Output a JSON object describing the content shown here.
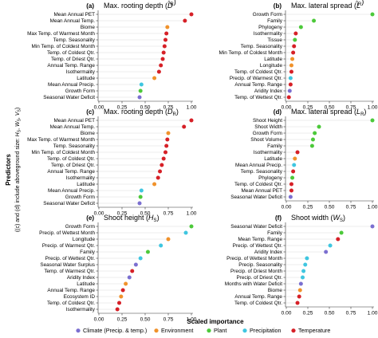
{
  "colors": {
    "Climate (Precip. & temp.)": "#7b6fd0",
    "Environment": "#f0922b",
    "Plant": "#4cc93a",
    "Precipitation": "#3fc6e0",
    "Temperature": "#d62027"
  },
  "y_axis_title": "Predictors",
  "y_axis_subtitle": "((c) and (d) include aboveground size: H_S, W_S, V_S)",
  "x_axis_title": "Scaled importance",
  "legend": [
    "Climate (Precip. & temp.)",
    "Environment",
    "Plant",
    "Precipitation",
    "Temperature"
  ],
  "chart_data": [
    {
      "panel": "(a)",
      "type": "scatter",
      "title": "Max. rooting depth",
      "symbol": "D",
      "symbol_sub": "R",
      "symbol_hat": true,
      "xlim": [
        0,
        1
      ],
      "xticks": [
        "0.00",
        "0.25",
        "0.50",
        "0.75",
        "1.00"
      ],
      "items": [
        {
          "label": "Mean Annual PET",
          "value": 1.0,
          "group": "Temperature"
        },
        {
          "label": "Mean Annual Temp.",
          "value": 0.93,
          "group": "Temperature"
        },
        {
          "label": "Biome",
          "value": 0.74,
          "group": "Environment"
        },
        {
          "label": "Max Temp. of Warmest Month",
          "value": 0.73,
          "group": "Temperature"
        },
        {
          "label": "Temp. Seasonality",
          "value": 0.72,
          "group": "Temperature"
        },
        {
          "label": "Min Temp. of Coldest Month",
          "value": 0.71,
          "group": "Temperature"
        },
        {
          "label": "Temp. of Coldest Qtr.",
          "value": 0.7,
          "group": "Temperature"
        },
        {
          "label": "Temp. of Driest Qtr.",
          "value": 0.69,
          "group": "Temperature"
        },
        {
          "label": "Annual Temp. Range",
          "value": 0.67,
          "group": "Temperature"
        },
        {
          "label": "Isothermality",
          "value": 0.65,
          "group": "Temperature"
        },
        {
          "label": "Latitude",
          "value": 0.6,
          "group": "Environment"
        },
        {
          "label": "Mean Annual Precip.",
          "value": 0.46,
          "group": "Precipitation"
        },
        {
          "label": "Growth Form",
          "value": 0.45,
          "group": "Plant"
        },
        {
          "label": "Seasonal Water Deficit",
          "value": 0.44,
          "group": "Climate (Precip. & temp.)"
        }
      ]
    },
    {
      "panel": "(b)",
      "type": "scatter",
      "title": "Max. lateral spread",
      "symbol": "L",
      "symbol_sub": "R",
      "symbol_hat": true,
      "xlim": [
        0,
        1
      ],
      "xticks": [
        "0.00",
        "0.25",
        "0.50",
        "0.75",
        "1.00"
      ],
      "items": [
        {
          "label": "Growth Form",
          "value": 1.0,
          "group": "Plant"
        },
        {
          "label": "Family",
          "value": 0.32,
          "group": "Plant"
        },
        {
          "label": "Phylogeny",
          "value": 0.17,
          "group": "Plant"
        },
        {
          "label": "Isothermality",
          "value": 0.11,
          "group": "Temperature"
        },
        {
          "label": "Tissue",
          "value": 0.1,
          "group": "Plant"
        },
        {
          "label": "Temp. Seasonality",
          "value": 0.09,
          "group": "Temperature"
        },
        {
          "label": "Min Temp. of Coldest Month",
          "value": 0.08,
          "group": "Temperature"
        },
        {
          "label": "Latitude",
          "value": 0.07,
          "group": "Environment"
        },
        {
          "label": "Longitude",
          "value": 0.06,
          "group": "Environment"
        },
        {
          "label": "Temp. of Coldest Qtr.",
          "value": 0.06,
          "group": "Temperature"
        },
        {
          "label": "Precip. of Warmest Qtr.",
          "value": 0.05,
          "group": "Precipitation"
        },
        {
          "label": "Annual Temp. Range",
          "value": 0.05,
          "group": "Temperature"
        },
        {
          "label": "Aridity Index",
          "value": 0.04,
          "group": "Climate (Precip. & temp.)"
        },
        {
          "label": "Temp. of Wettest Qtr.",
          "value": 0.03,
          "group": "Temperature"
        }
      ]
    },
    {
      "panel": "(c)",
      "type": "scatter",
      "title": "Max. rooting depth",
      "symbol": "D",
      "symbol_sub": "R",
      "symbol_hat": false,
      "xlim": [
        0,
        1
      ],
      "xticks": [
        "0.00",
        "0.25",
        "0.50",
        "0.75",
        "1.00"
      ],
      "items": [
        {
          "label": "Mean Annual PET",
          "value": 1.0,
          "group": "Temperature"
        },
        {
          "label": "Mean Annual Temp.",
          "value": 0.92,
          "group": "Temperature"
        },
        {
          "label": "Biome",
          "value": 0.75,
          "group": "Environment"
        },
        {
          "label": "Max Temp. of Warmest Month",
          "value": 0.74,
          "group": "Temperature"
        },
        {
          "label": "Temp. Seasonality",
          "value": 0.73,
          "group": "Temperature"
        },
        {
          "label": "Min Temp. of Coldest Month",
          "value": 0.72,
          "group": "Temperature"
        },
        {
          "label": "Temp. of Coldest Qtr.",
          "value": 0.7,
          "group": "Temperature"
        },
        {
          "label": "Temp. of Driest Qtr.",
          "value": 0.68,
          "group": "Temperature"
        },
        {
          "label": "Annual Temp. Range",
          "value": 0.66,
          "group": "Temperature"
        },
        {
          "label": "Isothermality",
          "value": 0.64,
          "group": "Temperature"
        },
        {
          "label": "Latitude",
          "value": 0.6,
          "group": "Environment"
        },
        {
          "label": "Mean Annual Precip.",
          "value": 0.46,
          "group": "Precipitation"
        },
        {
          "label": "Growth Form",
          "value": 0.45,
          "group": "Plant"
        },
        {
          "label": "Seasonal Water Deficit",
          "value": 0.44,
          "group": "Climate (Precip. & temp.)"
        }
      ]
    },
    {
      "panel": "(d)",
      "type": "scatter",
      "title": "Max. lateral spread",
      "symbol": "L",
      "symbol_sub": "R",
      "symbol_hat": false,
      "xlim": [
        0,
        1
      ],
      "xticks": [
        "0.00",
        "0.25",
        "0.50",
        "0.75",
        "1.00"
      ],
      "items": [
        {
          "label": "Shoot Height",
          "value": 1.0,
          "group": "Plant"
        },
        {
          "label": "Shoot Width",
          "value": 0.38,
          "group": "Plant"
        },
        {
          "label": "Growth Form",
          "value": 0.33,
          "group": "Plant"
        },
        {
          "label": "Shoot Volume",
          "value": 0.31,
          "group": "Plant"
        },
        {
          "label": "Family",
          "value": 0.3,
          "group": "Plant"
        },
        {
          "label": "Isothermality",
          "value": 0.13,
          "group": "Temperature"
        },
        {
          "label": "Latitude",
          "value": 0.1,
          "group": "Environment"
        },
        {
          "label": "Mean Annual Precip.",
          "value": 0.09,
          "group": "Precipitation"
        },
        {
          "label": "Temp. Seasonality",
          "value": 0.08,
          "group": "Temperature"
        },
        {
          "label": "Phylogeny",
          "value": 0.07,
          "group": "Plant"
        },
        {
          "label": "Temp. of Coldest Qtr.",
          "value": 0.06,
          "group": "Temperature"
        },
        {
          "label": "Mean Annual PET",
          "value": 0.06,
          "group": "Temperature"
        },
        {
          "label": "Seasonal Water Deficit",
          "value": 0.05,
          "group": "Climate (Precip. & temp.)"
        }
      ]
    },
    {
      "panel": "(e)",
      "type": "scatter",
      "title": "Shoot height",
      "symbol": "H",
      "symbol_sub": "S",
      "symbol_hat": false,
      "xlim": [
        0,
        1
      ],
      "xticks": [
        "0.00",
        "0.25",
        "0.50",
        "0.75",
        "1.00"
      ],
      "items": [
        {
          "label": "Growth Form",
          "value": 1.0,
          "group": "Plant"
        },
        {
          "label": "Precip. of Wettest Month",
          "value": 0.94,
          "group": "Precipitation"
        },
        {
          "label": "Longitude",
          "value": 0.75,
          "group": "Environment"
        },
        {
          "label": "Precip. of Warmest Qtr.",
          "value": 0.67,
          "group": "Precipitation"
        },
        {
          "label": "Family",
          "value": 0.53,
          "group": "Plant"
        },
        {
          "label": "Precip. of Wettest Qtr.",
          "value": 0.45,
          "group": "Precipitation"
        },
        {
          "label": "Seasonal Water Surplus",
          "value": 0.4,
          "group": "Climate (Precip. & temp.)"
        },
        {
          "label": "Temp. of Warmest Qtr.",
          "value": 0.36,
          "group": "Temperature"
        },
        {
          "label": "Aridity Index",
          "value": 0.33,
          "group": "Climate (Precip. & temp.)"
        },
        {
          "label": "Latitude",
          "value": 0.29,
          "group": "Environment"
        },
        {
          "label": "Annual Temp. Range",
          "value": 0.26,
          "group": "Temperature"
        },
        {
          "label": "Ecosystem ID",
          "value": 0.24,
          "group": "Environment"
        },
        {
          "label": "Temp. of Coldest Qtr.",
          "value": 0.22,
          "group": "Temperature"
        },
        {
          "label": "Isothermality",
          "value": 0.2,
          "group": "Temperature"
        }
      ]
    },
    {
      "panel": "(f)",
      "type": "scatter",
      "title": "Shoot width",
      "symbol": "W",
      "symbol_sub": "S",
      "symbol_hat": false,
      "xlim": [
        0,
        1
      ],
      "xticks": [
        "0.00",
        "0.25",
        "0.50",
        "0.75",
        "1.00"
      ],
      "items": [
        {
          "label": "Seasonal Water Deficit",
          "value": 1.0,
          "group": "Climate (Precip. & temp.)"
        },
        {
          "label": "Family",
          "value": 0.64,
          "group": "Plant"
        },
        {
          "label": "Mean Temp. Range",
          "value": 0.6,
          "group": "Temperature"
        },
        {
          "label": "Precip. of Wettest Qtr.",
          "value": 0.51,
          "group": "Precipitation"
        },
        {
          "label": "Aridity Index",
          "value": 0.46,
          "group": "Climate (Precip. & temp.)"
        },
        {
          "label": "Precip. of Wettest Month",
          "value": 0.24,
          "group": "Precipitation"
        },
        {
          "label": "Precip. Seasonality",
          "value": 0.22,
          "group": "Precipitation"
        },
        {
          "label": "Precip. of Driest Month",
          "value": 0.2,
          "group": "Precipitation"
        },
        {
          "label": "Precip. of Driest Qtr.",
          "value": 0.19,
          "group": "Precipitation"
        },
        {
          "label": "Months with Water Deficit",
          "value": 0.17,
          "group": "Climate (Precip. & temp.)"
        },
        {
          "label": "Biome",
          "value": 0.16,
          "group": "Environment"
        },
        {
          "label": "Annual Temp. Range",
          "value": 0.15,
          "group": "Temperature"
        },
        {
          "label": "Temp. of Coldest Qtr.",
          "value": 0.13,
          "group": "Temperature"
        }
      ]
    }
  ]
}
